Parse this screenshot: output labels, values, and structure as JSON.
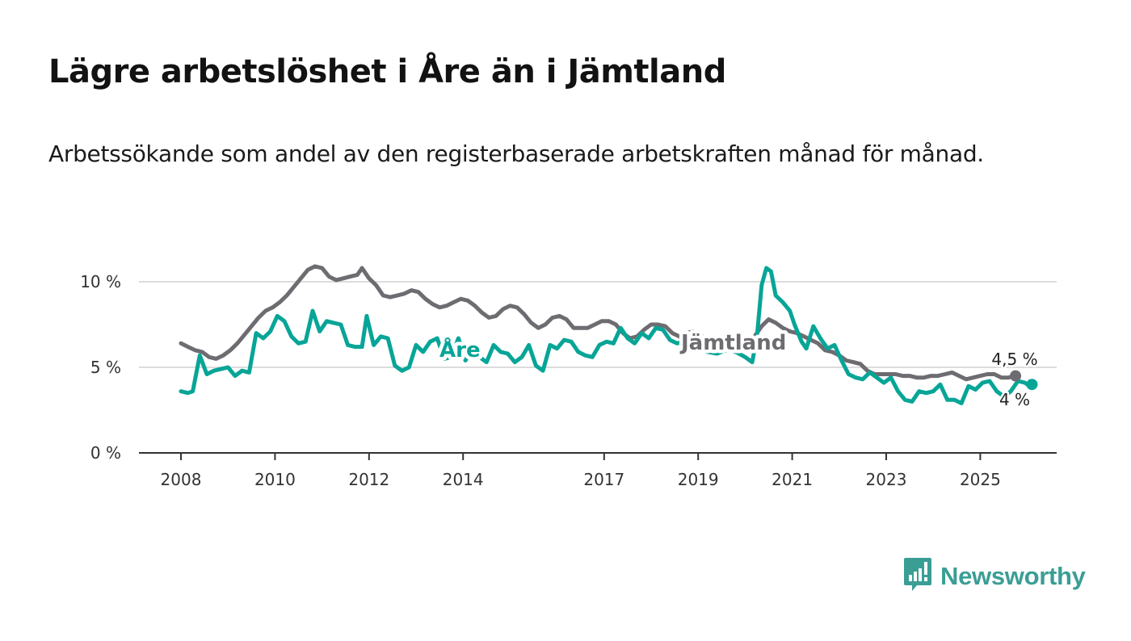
{
  "header": {
    "title": "Lägre arbetslöshet i Åre än i Jämtland",
    "subtitle": "Arbetssökande som andel av den registerbaserade arbetskraften månad för månad."
  },
  "brand": {
    "name": "Newsworthy",
    "icon": "bar-chart-speech-bubble-icon",
    "color": "#3a9e95"
  },
  "chart_data": {
    "type": "line",
    "title": "Lägre arbetslöshet i Åre än i Jämtland",
    "subtitle": "Arbetssökande som andel av den registerbaserade arbetskraften månad för månad.",
    "xlabel": "",
    "ylabel": "",
    "xlim": [
      2007.1,
      2026.6
    ],
    "ylim": [
      0,
      10
    ],
    "y_ticks": [
      {
        "value": 0,
        "label": "0 %"
      },
      {
        "value": 5,
        "label": "5 %"
      },
      {
        "value": 10,
        "label": "10 %"
      }
    ],
    "x_ticks": [
      {
        "value": 2008,
        "label": "2008"
      },
      {
        "value": 2010,
        "label": "2010"
      },
      {
        "value": 2012,
        "label": "2012"
      },
      {
        "value": 2014,
        "label": "2014"
      },
      {
        "value": 2017,
        "label": "2017"
      },
      {
        "value": 2019,
        "label": "2019"
      },
      {
        "value": 2021,
        "label": "2021"
      },
      {
        "value": 2023,
        "label": "2023"
      },
      {
        "value": 2025,
        "label": "2025"
      }
    ],
    "grid": "horizontal",
    "series": [
      {
        "name": "Jämtland",
        "color": "#6e6c71",
        "label_at": 2019.0,
        "end_label": "4,5 %",
        "points": [
          [
            2008.0,
            6.4
          ],
          [
            2008.15,
            6.2
          ],
          [
            2008.3,
            6.0
          ],
          [
            2008.45,
            5.9
          ],
          [
            2008.6,
            5.6
          ],
          [
            2008.75,
            5.5
          ],
          [
            2008.9,
            5.7
          ],
          [
            2009.05,
            6.0
          ],
          [
            2009.2,
            6.4
          ],
          [
            2009.35,
            6.9
          ],
          [
            2009.5,
            7.4
          ],
          [
            2009.65,
            7.9
          ],
          [
            2009.8,
            8.3
          ],
          [
            2009.95,
            8.5
          ],
          [
            2010.1,
            8.8
          ],
          [
            2010.25,
            9.2
          ],
          [
            2010.4,
            9.7
          ],
          [
            2010.55,
            10.2
          ],
          [
            2010.7,
            10.7
          ],
          [
            2010.85,
            10.9
          ],
          [
            2011.0,
            10.8
          ],
          [
            2011.15,
            10.3
          ],
          [
            2011.3,
            10.1
          ],
          [
            2011.45,
            10.2
          ],
          [
            2011.6,
            10.3
          ],
          [
            2011.75,
            10.4
          ],
          [
            2011.85,
            10.8
          ],
          [
            2012.0,
            10.2
          ],
          [
            2012.15,
            9.8
          ],
          [
            2012.3,
            9.2
          ],
          [
            2012.45,
            9.1
          ],
          [
            2012.6,
            9.2
          ],
          [
            2012.75,
            9.3
          ],
          [
            2012.9,
            9.5
          ],
          [
            2013.05,
            9.4
          ],
          [
            2013.2,
            9.0
          ],
          [
            2013.35,
            8.7
          ],
          [
            2013.5,
            8.5
          ],
          [
            2013.65,
            8.6
          ],
          [
            2013.8,
            8.8
          ],
          [
            2013.95,
            9.0
          ],
          [
            2014.1,
            8.9
          ],
          [
            2014.25,
            8.6
          ],
          [
            2014.4,
            8.2
          ],
          [
            2014.55,
            7.9
          ],
          [
            2014.7,
            8.0
          ],
          [
            2014.85,
            8.4
          ],
          [
            2015.0,
            8.6
          ],
          [
            2015.15,
            8.5
          ],
          [
            2015.3,
            8.1
          ],
          [
            2015.45,
            7.6
          ],
          [
            2015.6,
            7.3
          ],
          [
            2015.75,
            7.5
          ],
          [
            2015.9,
            7.9
          ],
          [
            2016.05,
            8.0
          ],
          [
            2016.2,
            7.8
          ],
          [
            2016.35,
            7.3
          ],
          [
            2016.5,
            7.3
          ],
          [
            2016.65,
            7.3
          ],
          [
            2016.8,
            7.5
          ],
          [
            2016.95,
            7.7
          ],
          [
            2017.1,
            7.7
          ],
          [
            2017.25,
            7.5
          ],
          [
            2017.4,
            7.0
          ],
          [
            2017.55,
            6.7
          ],
          [
            2017.7,
            6.8
          ],
          [
            2017.85,
            7.2
          ],
          [
            2018.0,
            7.5
          ],
          [
            2018.15,
            7.5
          ],
          [
            2018.3,
            7.4
          ],
          [
            2018.45,
            7.0
          ],
          [
            2018.6,
            6.8
          ],
          [
            2018.75,
            7.0
          ],
          [
            2018.9,
            7.1
          ],
          [
            2019.05,
            6.9
          ],
          [
            2019.2,
            6.5
          ],
          [
            2019.4,
            6.2
          ],
          [
            2019.6,
            6.1
          ],
          [
            2019.8,
            6.1
          ],
          [
            2020.0,
            6.2
          ],
          [
            2020.2,
            6.8
          ],
          [
            2020.35,
            7.4
          ],
          [
            2020.5,
            7.8
          ],
          [
            2020.65,
            7.6
          ],
          [
            2020.8,
            7.3
          ],
          [
            2020.95,
            7.1
          ],
          [
            2021.1,
            7.0
          ],
          [
            2021.25,
            6.8
          ],
          [
            2021.4,
            6.6
          ],
          [
            2021.55,
            6.4
          ],
          [
            2021.7,
            6.0
          ],
          [
            2021.85,
            5.9
          ],
          [
            2022.0,
            5.7
          ],
          [
            2022.15,
            5.4
          ],
          [
            2022.3,
            5.3
          ],
          [
            2022.45,
            5.2
          ],
          [
            2022.6,
            4.8
          ],
          [
            2022.75,
            4.6
          ],
          [
            2022.9,
            4.6
          ],
          [
            2023.05,
            4.6
          ],
          [
            2023.2,
            4.6
          ],
          [
            2023.35,
            4.5
          ],
          [
            2023.5,
            4.5
          ],
          [
            2023.65,
            4.4
          ],
          [
            2023.8,
            4.4
          ],
          [
            2023.95,
            4.5
          ],
          [
            2024.1,
            4.5
          ],
          [
            2024.25,
            4.6
          ],
          [
            2024.4,
            4.7
          ],
          [
            2024.55,
            4.5
          ],
          [
            2024.7,
            4.3
          ],
          [
            2024.85,
            4.4
          ],
          [
            2025.0,
            4.5
          ],
          [
            2025.15,
            4.6
          ],
          [
            2025.3,
            4.6
          ],
          [
            2025.45,
            4.4
          ],
          [
            2025.6,
            4.4
          ],
          [
            2025.75,
            4.5
          ],
          [
            2025.75,
            4.5
          ]
        ]
      },
      {
        "name": "Åre",
        "color": "#07a597",
        "label_at": 2014.0,
        "end_label": "4 %",
        "points": [
          [
            2008.0,
            3.6
          ],
          [
            2008.15,
            3.5
          ],
          [
            2008.25,
            3.6
          ],
          [
            2008.4,
            5.7
          ],
          [
            2008.55,
            4.6
          ],
          [
            2008.7,
            4.8
          ],
          [
            2008.85,
            4.9
          ],
          [
            2009.0,
            5.0
          ],
          [
            2009.15,
            4.5
          ],
          [
            2009.3,
            4.8
          ],
          [
            2009.45,
            4.7
          ],
          [
            2009.6,
            7.0
          ],
          [
            2009.75,
            6.7
          ],
          [
            2009.9,
            7.1
          ],
          [
            2010.05,
            8.0
          ],
          [
            2010.2,
            7.7
          ],
          [
            2010.35,
            6.8
          ],
          [
            2010.5,
            6.4
          ],
          [
            2010.65,
            6.5
          ],
          [
            2010.8,
            8.3
          ],
          [
            2010.95,
            7.1
          ],
          [
            2011.1,
            7.7
          ],
          [
            2011.25,
            7.6
          ],
          [
            2011.4,
            7.5
          ],
          [
            2011.55,
            6.3
          ],
          [
            2011.7,
            6.2
          ],
          [
            2011.85,
            6.2
          ],
          [
            2011.95,
            8.0
          ],
          [
            2012.1,
            6.3
          ],
          [
            2012.25,
            6.8
          ],
          [
            2012.4,
            6.7
          ],
          [
            2012.55,
            5.1
          ],
          [
            2012.7,
            4.8
          ],
          [
            2012.85,
            5.0
          ],
          [
            2013.0,
            6.3
          ],
          [
            2013.15,
            5.9
          ],
          [
            2013.3,
            6.5
          ],
          [
            2013.45,
            6.7
          ],
          [
            2013.6,
            5.5
          ],
          [
            2013.75,
            5.6
          ],
          [
            2013.9,
            6.7
          ],
          [
            2014.05,
            5.4
          ],
          [
            2014.2,
            6.0
          ],
          [
            2014.35,
            5.6
          ],
          [
            2014.5,
            5.3
          ],
          [
            2014.65,
            6.3
          ],
          [
            2014.8,
            5.9
          ],
          [
            2014.95,
            5.8
          ],
          [
            2015.1,
            5.3
          ],
          [
            2015.25,
            5.6
          ],
          [
            2015.4,
            6.3
          ],
          [
            2015.55,
            5.1
          ],
          [
            2015.7,
            4.8
          ],
          [
            2015.85,
            6.3
          ],
          [
            2016.0,
            6.1
          ],
          [
            2016.15,
            6.6
          ],
          [
            2016.3,
            6.5
          ],
          [
            2016.45,
            5.9
          ],
          [
            2016.6,
            5.7
          ],
          [
            2016.75,
            5.6
          ],
          [
            2016.9,
            6.3
          ],
          [
            2017.05,
            6.5
          ],
          [
            2017.2,
            6.4
          ],
          [
            2017.35,
            7.3
          ],
          [
            2017.5,
            6.7
          ],
          [
            2017.65,
            6.4
          ],
          [
            2017.8,
            7.0
          ],
          [
            2017.95,
            6.7
          ],
          [
            2018.1,
            7.3
          ],
          [
            2018.25,
            7.2
          ],
          [
            2018.4,
            6.6
          ],
          [
            2018.55,
            6.4
          ],
          [
            2018.7,
            6.5
          ],
          [
            2018.85,
            6.3
          ],
          [
            2019.0,
            6.1
          ],
          [
            2019.2,
            5.9
          ],
          [
            2019.4,
            5.8
          ],
          [
            2019.6,
            6.0
          ],
          [
            2019.8,
            5.9
          ],
          [
            2020.0,
            5.6
          ],
          [
            2020.15,
            5.3
          ],
          [
            2020.25,
            6.8
          ],
          [
            2020.35,
            9.8
          ],
          [
            2020.45,
            10.8
          ],
          [
            2020.55,
            10.6
          ],
          [
            2020.65,
            9.2
          ],
          [
            2020.8,
            8.8
          ],
          [
            2020.95,
            8.3
          ],
          [
            2021.05,
            7.5
          ],
          [
            2021.2,
            6.5
          ],
          [
            2021.3,
            6.1
          ],
          [
            2021.45,
            7.4
          ],
          [
            2021.6,
            6.7
          ],
          [
            2021.75,
            6.1
          ],
          [
            2021.9,
            6.3
          ],
          [
            2022.05,
            5.4
          ],
          [
            2022.2,
            4.6
          ],
          [
            2022.35,
            4.4
          ],
          [
            2022.5,
            4.3
          ],
          [
            2022.65,
            4.7
          ],
          [
            2022.8,
            4.4
          ],
          [
            2022.95,
            4.1
          ],
          [
            2023.1,
            4.4
          ],
          [
            2023.25,
            3.6
          ],
          [
            2023.4,
            3.1
          ],
          [
            2023.55,
            3.0
          ],
          [
            2023.7,
            3.6
          ],
          [
            2023.85,
            3.5
          ],
          [
            2024.0,
            3.6
          ],
          [
            2024.15,
            4.0
          ],
          [
            2024.3,
            3.1
          ],
          [
            2024.45,
            3.1
          ],
          [
            2024.6,
            2.9
          ],
          [
            2024.75,
            3.9
          ],
          [
            2024.9,
            3.7
          ],
          [
            2025.05,
            4.1
          ],
          [
            2025.2,
            4.2
          ],
          [
            2025.35,
            3.6
          ],
          [
            2025.5,
            3.3
          ],
          [
            2025.65,
            3.6
          ],
          [
            2025.8,
            4.2
          ],
          [
            2025.95,
            4.1
          ],
          [
            2026.05,
            3.9
          ],
          [
            2026.1,
            4.0
          ]
        ]
      }
    ],
    "annotations": [
      {
        "text": "Åre",
        "series": "Åre"
      },
      {
        "text": "Jämtland",
        "series": "Jämtland"
      },
      {
        "text": "4,5 %",
        "series": "Jämtland",
        "position": "end"
      },
      {
        "text": "4 %",
        "series": "Åre",
        "position": "end"
      }
    ]
  }
}
